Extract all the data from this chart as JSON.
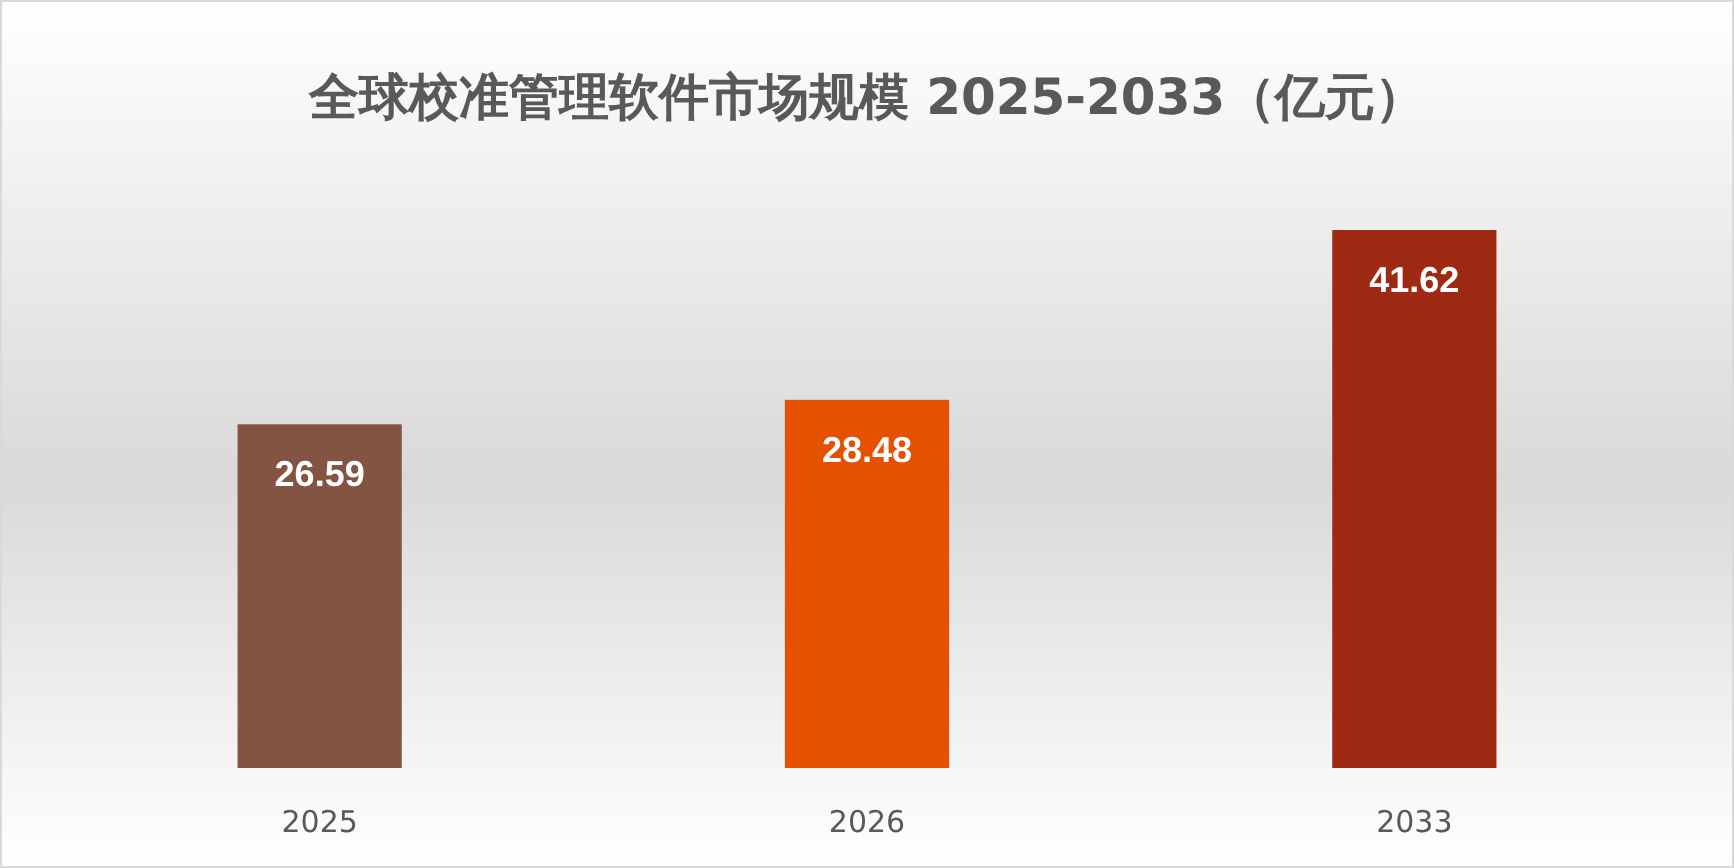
{
  "chart_data": {
    "type": "bar",
    "title": "全球校准管理软件市场规模 2025-2033（亿元）",
    "categories": [
      "2025",
      "2026",
      "2033"
    ],
    "values": [
      26.59,
      28.48,
      41.62
    ],
    "colors": [
      "#845443",
      "#e65100",
      "#9e2a14"
    ],
    "data_labels": true
  }
}
